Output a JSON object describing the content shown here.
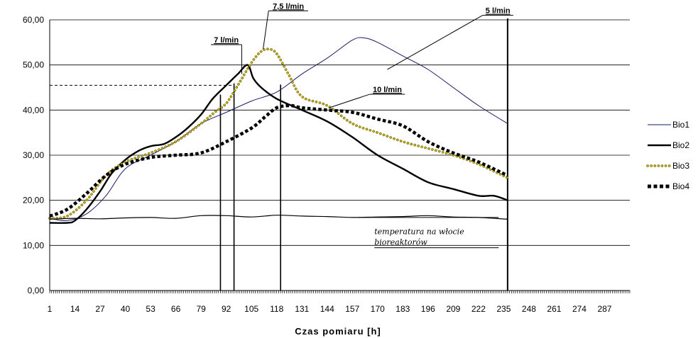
{
  "chart_data": {
    "type": "line",
    "title": "",
    "xlabel": "Czas pomiaru [h]",
    "ylabel": "",
    "xlim": [
      1,
      300
    ],
    "ylim": [
      0,
      60
    ],
    "y_ticks": [
      "0,00",
      "10,00",
      "20,00",
      "30,00",
      "40,00",
      "50,00",
      "60,00"
    ],
    "x_ticks": [
      1,
      14,
      27,
      40,
      53,
      66,
      79,
      92,
      105,
      118,
      131,
      144,
      157,
      170,
      183,
      196,
      209,
      222,
      235,
      248,
      261,
      274,
      287
    ],
    "grid": "horizontal",
    "legend_position": "right",
    "series": [
      {
        "name": "Bio1",
        "style": "thin",
        "color": "#1a1a66",
        "x": [
          1,
          10,
          20,
          30,
          40,
          53,
          66,
          79,
          92,
          105,
          118,
          131,
          144,
          157,
          163,
          170,
          183,
          196,
          209,
          222,
          237
        ],
        "y": [
          16,
          15.5,
          17,
          21,
          27,
          30,
          33,
          37,
          39.5,
          42,
          44,
          48,
          51.5,
          55.5,
          56,
          55,
          52,
          49,
          45,
          41,
          37
        ]
      },
      {
        "name": "Bio2",
        "style": "thick",
        "color": "#000000",
        "x": [
          1,
          10,
          14,
          20,
          27,
          33,
          40,
          47,
          53,
          60,
          66,
          72,
          79,
          85,
          92,
          98,
          103,
          106,
          110,
          118,
          131,
          144,
          157,
          170,
          183,
          196,
          209,
          222,
          230,
          237
        ],
        "y": [
          15,
          15,
          15.5,
          18,
          22,
          26,
          29,
          31,
          32,
          32.5,
          34,
          36,
          39,
          42.5,
          45.5,
          48,
          50,
          47,
          45,
          42.5,
          40,
          37.5,
          34,
          30,
          27,
          24,
          22.5,
          21,
          21,
          20
        ]
      },
      {
        "name": "Bio3",
        "style": "dotted",
        "color": "#c8b400",
        "x": [
          1,
          10,
          20,
          30,
          40,
          53,
          66,
          79,
          86,
          92,
          98,
          105,
          110,
          114,
          118,
          124,
          131,
          144,
          157,
          170,
          183,
          196,
          209,
          222,
          237
        ],
        "y": [
          16,
          16.5,
          20,
          25.5,
          28.5,
          30.5,
          33,
          37,
          39.5,
          41.5,
          45.5,
          50.5,
          53,
          53.5,
          52.5,
          48,
          43,
          41,
          37,
          35,
          33,
          31.5,
          30,
          28,
          25
        ]
      },
      {
        "name": "Bio4",
        "style": "square-markers",
        "color": "#000000",
        "x": [
          1,
          10,
          20,
          30,
          40,
          53,
          66,
          79,
          92,
          105,
          112,
          118,
          125,
          131,
          144,
          157,
          170,
          183,
          196,
          209,
          222,
          237
        ],
        "y": [
          16.5,
          18,
          21.5,
          25.5,
          28,
          29.5,
          30,
          30.5,
          33,
          36,
          38.5,
          40.5,
          41,
          40.5,
          40,
          39.5,
          38,
          36.5,
          33,
          30.5,
          28.5,
          25.5
        ]
      },
      {
        "name": "",
        "style": "thin-dark",
        "color": "#000000",
        "x": [
          1,
          14,
          27,
          40,
          53,
          66,
          79,
          92,
          105,
          118,
          131,
          144,
          157,
          170,
          183,
          196,
          209,
          222,
          237
        ],
        "y": [
          15.8,
          16,
          15.9,
          16.1,
          16.2,
          16,
          16.6,
          16.6,
          16.3,
          16.7,
          16.5,
          16.4,
          16.2,
          16.3,
          16.4,
          16.6,
          16.3,
          16.2,
          15.8
        ]
      }
    ],
    "reference_lines": {
      "vertical_x": [
        89,
        96,
        120,
        237
      ],
      "dashed_horizontal_y": 45.5,
      "dashed_horizontal_x_range": [
        1,
        96
      ]
    },
    "annotations": [
      {
        "text": "7,5 l/min",
        "style": "bold",
        "label_x": 124,
        "label_y": 62,
        "leader_to_x": 111,
        "leader_to_y": 53.5
      },
      {
        "text": "5 l/min",
        "style": "bold",
        "label_x": 232,
        "label_y": 61,
        "leader_to_x": 175,
        "leader_to_y": 49
      },
      {
        "text": "7 l/min",
        "style": "bold",
        "label_x": 92,
        "label_y": 54.5,
        "leader_to_x": 100,
        "leader_to_y": 48
      },
      {
        "text": "10 l/min",
        "style": "bold",
        "label_x": 175,
        "label_y": 43.5,
        "leader_to_x": 145,
        "leader_to_y": 40.5
      },
      {
        "text": "temperatura na wlocie bioreaktorów",
        "lines": [
          "temperatura na włocie",
          "bioreaktorów"
        ],
        "style": "italic",
        "label_x": 172,
        "label_y": 12,
        "leader_to_x": 160,
        "leader_to_y": 16.2
      }
    ]
  }
}
